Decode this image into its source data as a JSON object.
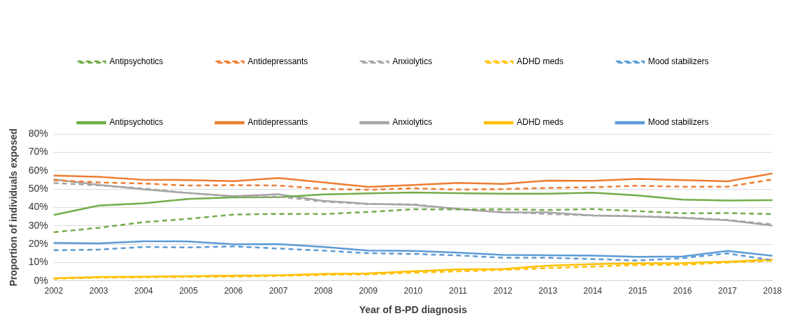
{
  "chart_data": {
    "type": "line",
    "xlabel": "Year of B-PD diagnosis",
    "ylabel": "Proportion of individuals exposed",
    "categories": [
      "2002",
      "2003",
      "2004",
      "2005",
      "2006",
      "2007",
      "2008",
      "2009",
      "2010",
      "2011",
      "2012",
      "2013",
      "2014",
      "2015",
      "2016",
      "2017",
      "2018"
    ],
    "ylim": [
      0,
      80
    ],
    "yticks": [
      {
        "value": 0,
        "label": "0%"
      },
      {
        "value": 10,
        "label": "10%"
      },
      {
        "value": 20,
        "label": "20%"
      },
      {
        "value": 30,
        "label": "30%"
      },
      {
        "value": 40,
        "label": "40%"
      },
      {
        "value": 50,
        "label": "50%"
      },
      {
        "value": 60,
        "label": "60%"
      },
      {
        "value": 70,
        "label": "70%"
      },
      {
        "value": 80,
        "label": "80%"
      }
    ],
    "grid": "y",
    "legend": "top",
    "marker": "none",
    "series": [
      {
        "name": "Antipsychotics",
        "color": "#70ad47",
        "line_style": "dashed",
        "values": [
          26.5,
          28.9,
          32,
          33.8,
          36.1,
          36.5,
          36.4,
          37.5,
          39,
          38.9,
          39,
          38.6,
          39.1,
          38,
          36.8,
          36.9,
          36.4
        ]
      },
      {
        "name": "Antidepressants",
        "color": "#ed7d31",
        "line_style": "dashed",
        "values": [
          54.8,
          53.6,
          53,
          51.9,
          52.1,
          51.9,
          50.1,
          49.6,
          50.4,
          49.7,
          50,
          50.6,
          51,
          51.8,
          51.3,
          51.3,
          55.2
        ]
      },
      {
        "name": "Anxiolytics",
        "color": "#a5a5a5",
        "line_style": "dashed",
        "values": [
          53.3,
          52,
          50.3,
          47.8,
          46,
          45.8,
          43.2,
          41.8,
          41.7,
          39.1,
          37.6,
          36.4,
          35.6,
          35.2,
          34.5,
          33.2,
          30.8
        ]
      },
      {
        "name": "ADHD meds",
        "color": "#ffc000",
        "line_style": "dashed",
        "values": [
          1.2,
          1.8,
          2,
          2.2,
          2.4,
          2.7,
          3.3,
          3.5,
          4.5,
          5.2,
          6,
          7,
          7.8,
          8.7,
          8.8,
          10,
          11
        ]
      },
      {
        "name": "Mood stabilizers",
        "color": "#5b9bd5",
        "line_style": "dashed",
        "values": [
          16.7,
          17,
          18.5,
          18.2,
          18.8,
          17.6,
          16.5,
          15.1,
          14.7,
          13.9,
          12.6,
          12.6,
          11.9,
          11.1,
          12.4,
          15,
          11.2
        ]
      },
      {
        "name": "Antipsychotics",
        "color": "#70ad47",
        "line_style": "solid",
        "values": [
          35.9,
          41,
          42.2,
          44.6,
          45.5,
          45.6,
          47.1,
          47.6,
          48.1,
          47.7,
          47.5,
          47.5,
          48,
          46.5,
          44.2,
          43.8,
          43.9
        ]
      },
      {
        "name": "Antidepressants",
        "color": "#ed7d31",
        "line_style": "solid",
        "values": [
          57.3,
          56.7,
          55,
          54.9,
          54.3,
          56,
          53.6,
          51.2,
          52.2,
          53.3,
          52.8,
          54.6,
          54.5,
          55.5,
          54.9,
          54.2,
          58.5
        ]
      },
      {
        "name": "Anxiolytics",
        "color": "#a5a5a5",
        "line_style": "solid",
        "values": [
          55.2,
          52.3,
          49.8,
          47.8,
          46.1,
          47.2,
          43.6,
          42,
          41.4,
          39.2,
          37.2,
          37.3,
          35.6,
          35.1,
          34.3,
          33,
          30.1
        ]
      },
      {
        "name": "ADHD meds",
        "color": "#ffc000",
        "line_style": "solid",
        "values": [
          1.4,
          2.1,
          2.3,
          2.6,
          2.9,
          3.1,
          3.8,
          4.1,
          5.2,
          6.3,
          6.5,
          8.3,
          9.1,
          9.6,
          9.7,
          10.5,
          11.6
        ]
      },
      {
        "name": "Mood stabilizers",
        "color": "#5b9bd5",
        "line_style": "solid",
        "values": [
          20.7,
          20.4,
          21.6,
          21.5,
          19.9,
          20,
          18.5,
          16.5,
          16.3,
          15.4,
          14.2,
          14,
          13.8,
          13.1,
          13.3,
          16.3,
          13.7
        ]
      }
    ]
  }
}
